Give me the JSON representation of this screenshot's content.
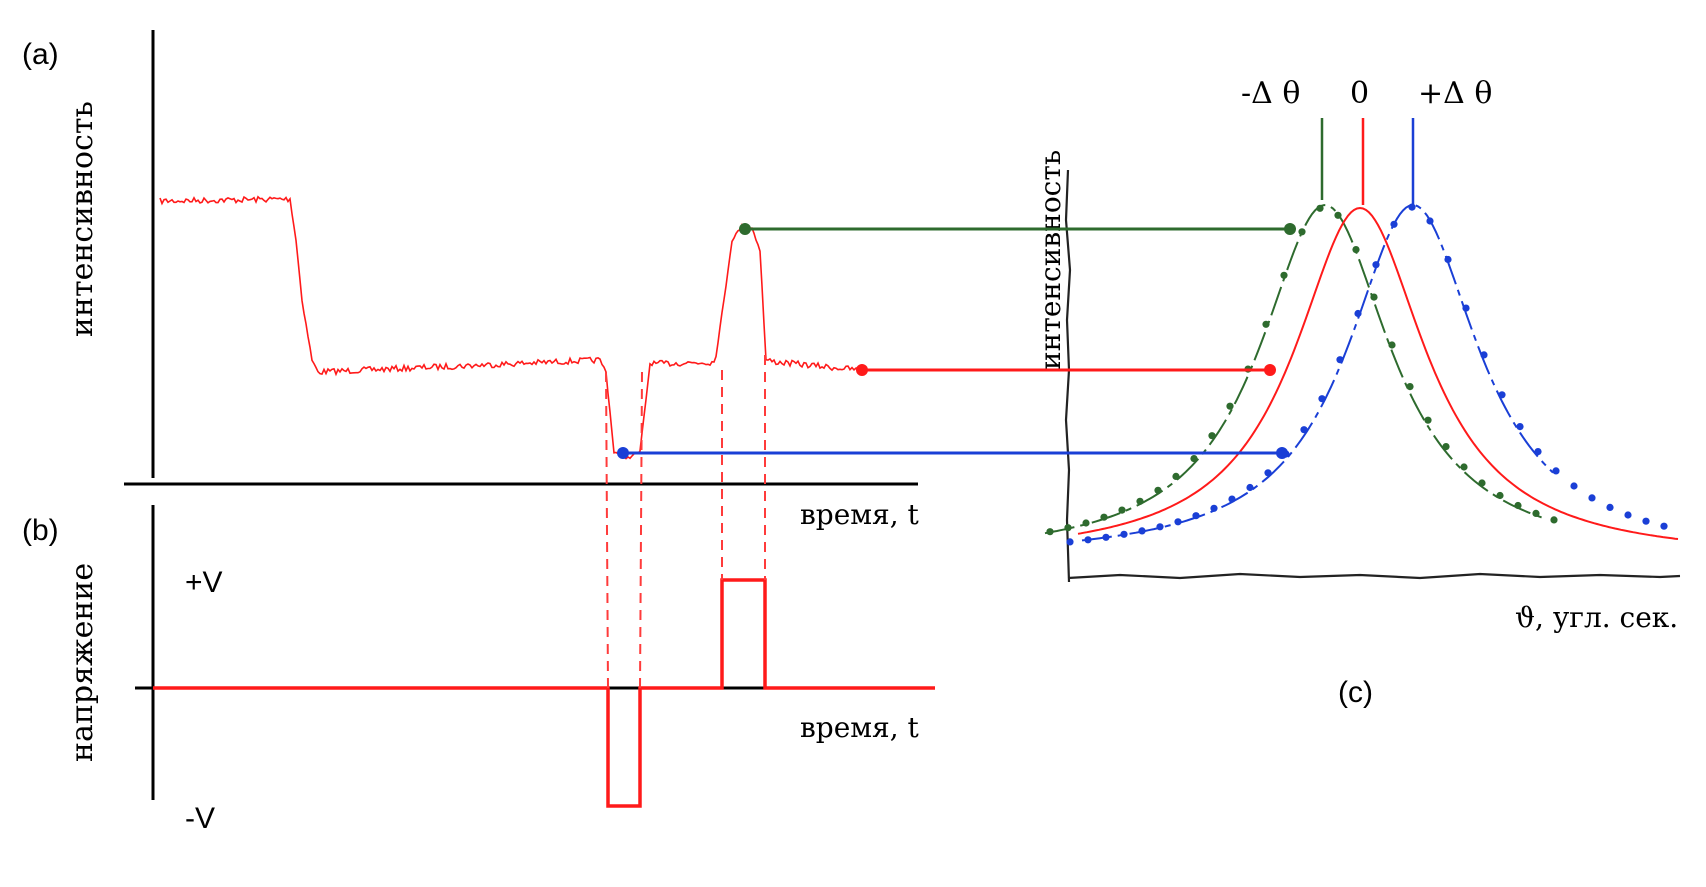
{
  "panels": {
    "a": {
      "label": "(a)",
      "ylabel": "интенсивность",
      "xlabel": "время, t"
    },
    "b": {
      "label": "(b)",
      "ylabel": "напряжение",
      "xlabel": "время, t",
      "pos_level": "+V",
      "neg_level": "-V"
    },
    "c": {
      "label": "(c)",
      "ylabel": "интенсивность",
      "xlabel": "ϑ, угл. сек.",
      "peak_labels": [
        "-Δ θ",
        "0",
        "+Δ θ"
      ]
    }
  },
  "colors": {
    "signal": "#ff1a1a",
    "curve_minus": "#2e6b2e",
    "curve_zero": "#ff1a1a",
    "curve_plus": "#1a3fd6",
    "axis": "#000000"
  }
}
